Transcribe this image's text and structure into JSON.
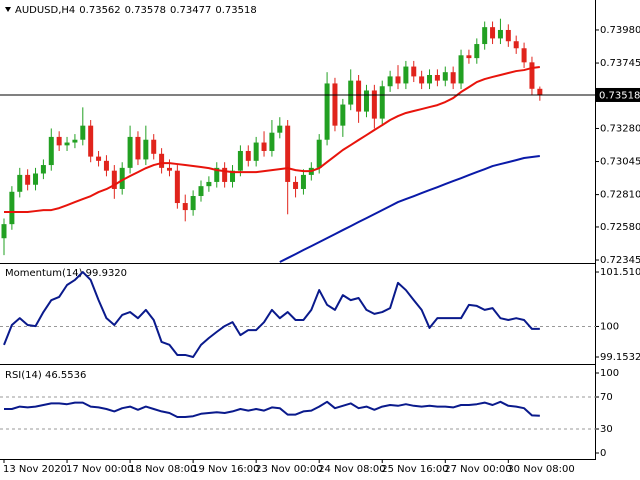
{
  "chart_data": [
    {
      "type": "candlestick",
      "title": "AUDUSD,H4",
      "categories": [
        "13 Nov 2020",
        null,
        null,
        null,
        null,
        null,
        null,
        null,
        "17 Nov 00:00",
        null,
        null,
        null,
        null,
        null,
        null,
        null,
        "18 Nov 08:00",
        null,
        null,
        null,
        null,
        null,
        null,
        null,
        "19 Nov 16:00",
        null,
        null,
        null,
        null,
        null,
        null,
        null,
        "23 Nov 00:00",
        null,
        null,
        null,
        null,
        null,
        null,
        null,
        "24 Nov 08:00",
        null,
        null,
        null,
        null,
        null,
        null,
        null,
        "25 Nov 16:00",
        null,
        null,
        null,
        null,
        null,
        null,
        null,
        "27 Nov 00:00",
        null,
        null,
        null,
        null,
        null,
        null,
        null,
        "30 Nov 08:00",
        null,
        null,
        null,
        null
      ],
      "open": [
        0.725,
        0.726,
        0.7283,
        0.7295,
        0.7288,
        0.7296,
        0.7302,
        0.7322,
        0.7316,
        0.7318,
        0.732,
        0.733,
        0.7308,
        0.7305,
        0.7298,
        0.7285,
        0.73,
        0.7322,
        0.7306,
        0.732,
        0.731,
        0.73,
        0.7298,
        0.7275,
        0.727,
        0.728,
        0.7287,
        0.729,
        0.73,
        0.729,
        0.7298,
        0.7312,
        0.7305,
        0.7318,
        0.7312,
        0.7325,
        0.733,
        0.729,
        0.7285,
        0.7295,
        0.73,
        0.732,
        0.736,
        0.733,
        0.7345,
        0.7362,
        0.734,
        0.7355,
        0.7335,
        0.7358,
        0.7365,
        0.736,
        0.7372,
        0.7365,
        0.736,
        0.7366,
        0.7362,
        0.7368,
        0.736,
        0.738,
        0.7378,
        0.7388,
        0.74,
        0.7392,
        0.7398,
        0.739,
        0.7385,
        0.7375,
        0.73562
      ],
      "high": [
        0.7264,
        0.7287,
        0.73,
        0.7299,
        0.73,
        0.7306,
        0.7328,
        0.7326,
        0.7322,
        0.7324,
        0.7343,
        0.7334,
        0.7312,
        0.7309,
        0.7302,
        0.7304,
        0.733,
        0.7326,
        0.733,
        0.7324,
        0.7314,
        0.7306,
        0.7302,
        0.7281,
        0.7284,
        0.7291,
        0.7294,
        0.7304,
        0.7304,
        0.7302,
        0.7316,
        0.7316,
        0.7322,
        0.7326,
        0.7334,
        0.7336,
        0.7334,
        0.7294,
        0.7299,
        0.7304,
        0.7324,
        0.7368,
        0.7364,
        0.7349,
        0.737,
        0.7366,
        0.7359,
        0.7359,
        0.7362,
        0.7369,
        0.7373,
        0.7376,
        0.7376,
        0.7369,
        0.737,
        0.737,
        0.7372,
        0.7372,
        0.7384,
        0.7384,
        0.7392,
        0.7404,
        0.7404,
        0.7406,
        0.7402,
        0.7394,
        0.7389,
        0.7379,
        0.73578
      ],
      "low": [
        0.7238,
        0.7256,
        0.7279,
        0.7284,
        0.7284,
        0.7292,
        0.7298,
        0.7312,
        0.7312,
        0.7314,
        0.7316,
        0.7304,
        0.7301,
        0.7294,
        0.7278,
        0.7281,
        0.7296,
        0.7302,
        0.7302,
        0.7306,
        0.7296,
        0.7294,
        0.7271,
        0.7262,
        0.7266,
        0.7276,
        0.7283,
        0.7286,
        0.7286,
        0.7286,
        0.7294,
        0.7301,
        0.7301,
        0.7308,
        0.7308,
        0.7321,
        0.7267,
        0.7279,
        0.7281,
        0.7291,
        0.7296,
        0.7316,
        0.7326,
        0.7322,
        0.7341,
        0.7332,
        0.7336,
        0.7328,
        0.7331,
        0.7354,
        0.7356,
        0.7356,
        0.7361,
        0.7356,
        0.7356,
        0.7358,
        0.7358,
        0.7356,
        0.7356,
        0.7374,
        0.7374,
        0.7384,
        0.7388,
        0.7388,
        0.7386,
        0.7381,
        0.7371,
        0.7352,
        0.73477
      ],
      "close": [
        0.726,
        0.7283,
        0.7295,
        0.7288,
        0.7296,
        0.7302,
        0.7322,
        0.7316,
        0.7318,
        0.732,
        0.733,
        0.7308,
        0.7305,
        0.7298,
        0.7285,
        0.73,
        0.7322,
        0.7306,
        0.732,
        0.731,
        0.73,
        0.7298,
        0.7275,
        0.727,
        0.728,
        0.7287,
        0.729,
        0.73,
        0.729,
        0.7298,
        0.7312,
        0.7305,
        0.7318,
        0.7312,
        0.7325,
        0.733,
        0.729,
        0.7285,
        0.7295,
        0.73,
        0.732,
        0.736,
        0.733,
        0.7345,
        0.7362,
        0.734,
        0.7355,
        0.7335,
        0.7358,
        0.7365,
        0.736,
        0.7372,
        0.7365,
        0.736,
        0.7366,
        0.7362,
        0.7368,
        0.736,
        0.738,
        0.7378,
        0.7388,
        0.74,
        0.7392,
        0.7398,
        0.739,
        0.7385,
        0.7375,
        0.73562,
        0.73518
      ],
      "up_color": "#22a022",
      "down_color": "#e0241c",
      "series": [
        {
          "color": "#e8140c",
          "values": [
            0.72686,
            0.72686,
            0.72686,
            0.72686,
            0.72693,
            0.727,
            0.727,
            0.72714,
            0.72735,
            0.72757,
            0.72778,
            0.72799,
            0.72828,
            0.72849,
            0.72878,
            0.72913,
            0.72942,
            0.7297,
            0.72998,
            0.7302,
            0.73034,
            0.73034,
            0.73027,
            0.7302,
            0.73013,
            0.73006,
            0.72998,
            0.72984,
            0.72977,
            0.7297,
            0.7297,
            0.7297,
            0.7297,
            0.72977,
            0.72984,
            0.72991,
            0.72998,
            0.72984,
            0.72977,
            0.72977,
            0.72998,
            0.73041,
            0.73084,
            0.73127,
            0.73162,
            0.73198,
            0.73233,
            0.73269,
            0.73304,
            0.7334,
            0.73368,
            0.7339,
            0.73404,
            0.73418,
            0.73432,
            0.73446,
            0.73468,
            0.73496,
            0.73539,
            0.73574,
            0.7361,
            0.73631,
            0.73646,
            0.7366,
            0.73674,
            0.73688,
            0.73695,
            0.7371,
            0.73717
          ]
        },
        {
          "color": "#0a1aa8",
          "values": [
            null,
            null,
            null,
            null,
            null,
            null,
            null,
            null,
            null,
            null,
            null,
            null,
            null,
            null,
            null,
            null,
            null,
            null,
            null,
            null,
            null,
            null,
            null,
            null,
            null,
            null,
            null,
            null,
            null,
            null,
            null,
            null,
            null,
            null,
            null,
            0.72331,
            0.72359,
            0.72387,
            0.72416,
            0.72444,
            0.72472,
            0.72501,
            0.72529,
            0.72558,
            0.72586,
            0.72615,
            0.72643,
            0.72671,
            0.727,
            0.72728,
            0.72757,
            0.72778,
            0.72799,
            0.72821,
            0.72842,
            0.72863,
            0.72885,
            0.72906,
            0.72927,
            0.72949,
            0.7297,
            0.72991,
            0.73013,
            0.73027,
            0.73041,
            0.73055,
            0.7307,
            0.73077,
            0.73084
          ]
        }
      ],
      "ylim": [
        0.72331,
        0.74193
      ],
      "yticks": [
        {
          "value": 0.7398,
          "label": "0.73980"
        },
        0.73745,
        {
          "value": 0.7328,
          "label": "0.73280"
        },
        0.73045,
        {
          "value": 0.7281,
          "label": "0.72810"
        },
        {
          "value": 0.7258,
          "label": "0.72580"
        },
        0.72345
      ]
    },
    {
      "type": "line",
      "title": "Momentum(14) 99.9320",
      "color": "#0a1a8c",
      "values": [
        99.49,
        100.04,
        100.23,
        100.04,
        100.01,
        100.4,
        100.73,
        100.82,
        101.15,
        101.29,
        101.5104,
        101.29,
        100.73,
        100.23,
        100.04,
        100.32,
        100.4,
        100.23,
        100.46,
        100.18,
        99.57,
        99.49,
        99.21,
        99.21,
        99.1532,
        99.49,
        99.68,
        99.85,
        100.01,
        100.12,
        99.76,
        99.9,
        99.9,
        100.12,
        100.46,
        100.23,
        100.4,
        100.18,
        100.18,
        100.46,
        101.01,
        100.6,
        100.46,
        100.87,
        100.73,
        100.79,
        100.46,
        100.35,
        100.4,
        100.51,
        101.21,
        101.01,
        100.73,
        100.46,
        99.96,
        100.23,
        100.23,
        100.23,
        100.23,
        100.6,
        100.57,
        100.46,
        100.51,
        100.23,
        100.18,
        100.23,
        100.18,
        99.932,
        99.932
      ],
      "ylim": [
        98.987,
        101.705
      ],
      "yticks": [
        101.5104,
        100,
        99.1532
      ],
      "levels": [
        100
      ]
    },
    {
      "type": "line",
      "title": "RSI(14) 46.5536",
      "color": "#0a1a8c",
      "values": [
        55,
        55,
        58,
        57,
        58,
        60,
        62,
        62,
        61,
        63,
        63,
        58,
        57,
        55,
        52,
        56,
        58,
        54,
        58,
        55,
        52,
        50,
        45,
        45,
        46,
        49,
        50,
        51,
        50,
        52,
        55,
        53,
        55,
        53,
        57,
        56,
        48,
        48,
        52,
        53,
        58,
        64,
        56,
        59,
        62,
        56,
        58,
        54,
        58,
        60,
        59,
        61,
        59,
        58,
        59,
        58,
        58,
        57,
        60,
        60,
        61,
        63,
        60,
        64,
        59,
        58,
        56,
        47,
        46.5536
      ],
      "ylim": [
        -6.25,
        108.75
      ],
      "yticks": [
        100,
        70,
        30,
        0
      ],
      "levels": [
        70,
        30
      ]
    }
  ]
}
